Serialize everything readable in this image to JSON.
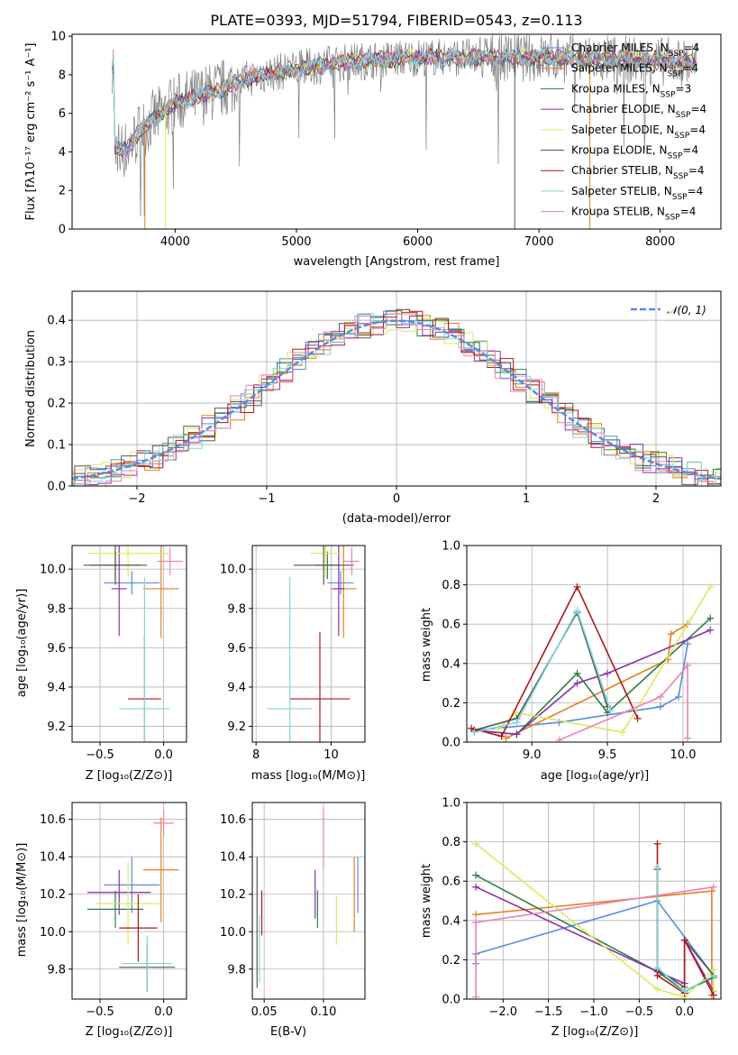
{
  "colors": [
    "#5a8be0",
    "#e0801f",
    "#2f7d45",
    "#8b2fa8",
    "#dde85b",
    "#555555",
    "#b01818",
    "#80d6d6",
    "#e883b8"
  ],
  "chart_data": [
    {
      "id": "spectrum",
      "type": "line",
      "title": "PLATE=0393, MJD=51794, FIBERID=0543, z=0.113",
      "xlabel": "wavelength [Angstrom, rest frame]",
      "ylabel": "Flux [fλ10⁻¹⁷ erg cm⁻² s⁻¹ A⁻¹]",
      "xlim": [
        3150,
        8500
      ],
      "ylim": [
        0,
        10.1
      ],
      "xticks": [
        "4000",
        "5000",
        "6000",
        "7000",
        "8000"
      ],
      "yticks": [
        "0",
        "2",
        "4",
        "6",
        "8",
        "10"
      ],
      "legend_position": "right",
      "series": [
        {
          "name": "Chabrier MILES, N_SSP=4",
          "leg_main": "Chabrier MILES, N",
          "leg_sub": "SSP",
          "leg_end": "=4"
        },
        {
          "name": "Salpeter MILES, N_SSP=4",
          "leg_main": "Salpeter MILES, N",
          "leg_sub": "SSP",
          "leg_end": "=4"
        },
        {
          "name": "Kroupa MILES, N_SSP=3",
          "leg_main": "Kroupa MILES, N",
          "leg_sub": "SSP",
          "leg_end": "=3"
        },
        {
          "name": "Chabrier ELODIE, N_SSP=4",
          "leg_main": "Chabrier ELODIE, N",
          "leg_sub": "SSP",
          "leg_end": "=4"
        },
        {
          "name": "Salpeter ELODIE, N_SSP=4",
          "leg_main": "Salpeter ELODIE, N",
          "leg_sub": "SSP",
          "leg_end": "=4"
        },
        {
          "name": "Kroupa ELODIE, N_SSP=4",
          "leg_main": "Kroupa ELODIE, N",
          "leg_sub": "SSP",
          "leg_end": "=4"
        },
        {
          "name": "Chabrier STELIB, N_SSP=4",
          "leg_main": "Chabrier STELIB, N",
          "leg_sub": "SSP",
          "leg_end": "=4"
        },
        {
          "name": "Salpeter STELIB, N_SSP=4",
          "leg_main": "Salpeter STELIB, N",
          "leg_sub": "SSP",
          "leg_end": "=4"
        },
        {
          "name": "Kroupa STELIB, N_SSP=4",
          "leg_main": "Kroupa STELIB, N",
          "leg_sub": "SSP",
          "leg_end": "=4"
        }
      ],
      "continuum": [
        [
          3500,
          4.2
        ],
        [
          3600,
          4.1
        ],
        [
          3700,
          5.0
        ],
        [
          3800,
          5.6
        ],
        [
          3900,
          6.0
        ],
        [
          4000,
          6.5
        ],
        [
          4200,
          6.9
        ],
        [
          4400,
          7.3
        ],
        [
          4600,
          7.8
        ],
        [
          4800,
          8.1
        ],
        [
          5000,
          8.3
        ],
        [
          5200,
          8.5
        ],
        [
          5500,
          8.7
        ],
        [
          6000,
          8.9
        ],
        [
          6500,
          8.9
        ],
        [
          7000,
          8.9
        ],
        [
          7500,
          8.8
        ],
        [
          8000,
          8.7
        ],
        [
          8300,
          8.6
        ]
      ]
    },
    {
      "id": "residuals",
      "type": "line",
      "xlabel": "(data-model)/error",
      "ylabel": "Normed distribution",
      "xlim": [
        -2.5,
        2.5
      ],
      "ylim": [
        0,
        0.47
      ],
      "xticks": [
        "−2",
        "−1",
        "0",
        "1",
        "2"
      ],
      "yticks": [
        "0.0",
        "0.1",
        "0.2",
        "0.3",
        "0.4"
      ],
      "legend": "𝒩(0, 1)",
      "legend_position": "top-right",
      "curve": "normal(0,1)"
    },
    {
      "id": "age-Z",
      "type": "scatter",
      "xlabel": "Z [log₁₀(Z/Z⊙)]",
      "ylabel": "age  [log₁₀(age/yr)]",
      "xlim": [
        -0.72,
        0.18
      ],
      "ylim": [
        9.12,
        10.12
      ],
      "xticks": [
        "−0.5",
        "0.0"
      ],
      "yticks": [
        "9.2",
        "9.4",
        "9.6",
        "9.8",
        "10.0"
      ],
      "points": [
        {
          "x": -0.25,
          "y": 9.93,
          "xerr": 0.22,
          "yerr": 0.06,
          "c": 0
        },
        {
          "x": -0.02,
          "y": 9.9,
          "xerr": 0.14,
          "yerr": 0.25,
          "c": 1
        },
        {
          "x": -0.38,
          "y": 10.02,
          "xerr": 0.2,
          "yerr": 0.07,
          "c": 2
        },
        {
          "x": -0.35,
          "y": 9.9,
          "xerr": 0.06,
          "yerr": 0.24,
          "c": 3
        },
        {
          "x": -0.28,
          "y": 10.08,
          "xerr": 0.32,
          "yerr": 0.12,
          "c": 4
        },
        {
          "x": -0.38,
          "y": 10.02,
          "xerr": 0.25,
          "yerr": 0.1,
          "c": 5
        },
        {
          "x": -0.15,
          "y": 9.34,
          "xerr": 0.13,
          "yerr": 0.32,
          "c": 6
        },
        {
          "x": -0.15,
          "y": 9.29,
          "xerr": 0.2,
          "yerr": 0.67,
          "c": 7
        },
        {
          "x": 0.05,
          "y": 10.04,
          "xerr": 0.1,
          "yerr": 0.07,
          "c": 8
        }
      ]
    },
    {
      "id": "age-mass",
      "type": "scatter",
      "xlabel": "mass [log₁₀(M/M⊙)]",
      "ylabel": "",
      "xlim": [
        7.9,
        10.9
      ],
      "ylim": [
        9.12,
        10.12
      ],
      "xticks": [
        "8",
        "10"
      ],
      "yticks": [
        "9.2",
        "9.4",
        "9.6",
        "9.8",
        "10.0"
      ],
      "points": [
        {
          "x": 10.25,
          "y": 9.93,
          "xerr": 0.35,
          "yerr": 0.06,
          "c": 0
        },
        {
          "x": 10.33,
          "y": 9.9,
          "xerr": 0.35,
          "yerr": 0.25,
          "c": 1
        },
        {
          "x": 9.9,
          "y": 10.02,
          "xerr": 0.35,
          "yerr": 0.07,
          "c": 2
        },
        {
          "x": 10.2,
          "y": 9.9,
          "xerr": 0.15,
          "yerr": 0.24,
          "c": 3
        },
        {
          "x": 9.85,
          "y": 10.08,
          "xerr": 0.4,
          "yerr": 0.12,
          "c": 4
        },
        {
          "x": 9.8,
          "y": 10.02,
          "xerr": 0.8,
          "yerr": 0.1,
          "c": 5
        },
        {
          "x": 9.7,
          "y": 9.34,
          "xerr": 0.8,
          "yerr": 0.34,
          "c": 6
        },
        {
          "x": 8.9,
          "y": 9.29,
          "xerr": 0.6,
          "yerr": 0.67,
          "c": 7
        },
        {
          "x": 10.55,
          "y": 10.04,
          "xerr": 0.2,
          "yerr": 0.07,
          "c": 8
        }
      ]
    },
    {
      "id": "weight-age",
      "type": "line",
      "xlabel": "age  [log₁₀(age/yr)]",
      "ylabel": "mass weight",
      "xlim": [
        8.57,
        10.25
      ],
      "ylim": [
        0,
        1.0
      ],
      "xticks": [
        "9.0",
        "9.5",
        "10.0"
      ],
      "yticks": [
        "0.0",
        "0.2",
        "0.4",
        "0.6",
        "0.8",
        "1.0"
      ],
      "series": [
        {
          "c": 0,
          "x": [
            8.62,
            9.18,
            9.85,
            9.97,
            10.03
          ],
          "y": [
            0.06,
            0.1,
            0.18,
            0.23,
            0.5
          ]
        },
        {
          "c": 1,
          "x": [
            8.83,
            9.9,
            9.92,
            10.03
          ],
          "y": [
            0.02,
            0.42,
            0.55,
            0.6
          ]
        },
        {
          "c": 2,
          "x": [
            8.62,
            8.9,
            9.3,
            9.5,
            10.18
          ],
          "y": [
            0.06,
            0.04,
            0.35,
            0.15,
            0.63
          ]
        },
        {
          "c": 3,
          "x": [
            8.62,
            8.9,
            9.3,
            9.5,
            10.18
          ],
          "y": [
            0.06,
            0.04,
            0.3,
            0.35,
            0.57
          ]
        },
        {
          "c": 4,
          "x": [
            8.78,
            8.9,
            9.6,
            10.18
          ],
          "y": [
            0.07,
            0.15,
            0.05,
            0.79
          ]
        },
        {
          "c": 5,
          "x": [
            8.62,
            8.9,
            9.3,
            9.5
          ],
          "y": [
            0.06,
            0.12,
            0.66,
            0.18
          ]
        },
        {
          "c": 6,
          "x": [
            8.6,
            8.8,
            9.3,
            9.7
          ],
          "y": [
            0.07,
            0.03,
            0.79,
            0.12
          ]
        },
        {
          "c": 7,
          "x": [
            8.62,
            8.9,
            9.3,
            9.52
          ],
          "y": [
            0.05,
            0.1,
            0.67,
            0.16
          ]
        },
        {
          "c": 8,
          "x": [
            9.18,
            9.85,
            10.03,
            10.03
          ],
          "y": [
            0.01,
            0.23,
            0.39,
            0.02
          ]
        }
      ]
    },
    {
      "id": "mass-Z",
      "type": "scatter",
      "xlabel": "Z [log₁₀(Z/Z⊙)]",
      "ylabel": "mass [log₁₀(M/M⊙)]",
      "xlim": [
        -0.72,
        0.18
      ],
      "ylim": [
        9.64,
        10.69
      ],
      "xticks": [
        "−0.5",
        "0.0"
      ],
      "yticks": [
        "9.8",
        "10.0",
        "10.2",
        "10.4",
        "10.6"
      ],
      "points": [
        {
          "x": -0.25,
          "y": 10.25,
          "xerr": 0.22,
          "yerr": 0.15,
          "c": 0
        },
        {
          "x": -0.02,
          "y": 10.33,
          "xerr": 0.14,
          "yerr": 0.28,
          "c": 1
        },
        {
          "x": -0.38,
          "y": 10.12,
          "xerr": 0.22,
          "yerr": 0.1,
          "c": 2
        },
        {
          "x": -0.35,
          "y": 10.21,
          "xerr": 0.25,
          "yerr": 0.12,
          "c": 3
        },
        {
          "x": -0.28,
          "y": 10.15,
          "xerr": 0.25,
          "yerr": 0.22,
          "c": 4
        },
        {
          "x": -0.13,
          "y": 9.81,
          "xerr": 0.22,
          "yerr": 0.13,
          "c": 5
        },
        {
          "x": -0.2,
          "y": 10.02,
          "xerr": 0.15,
          "yerr": 0.18,
          "c": 6
        },
        {
          "x": -0.13,
          "y": 9.83,
          "xerr": 0.2,
          "yerr": 0.15,
          "c": 7
        },
        {
          "x": 0.0,
          "y": 10.58,
          "xerr": 0.08,
          "yerr": 0.07,
          "c": 8
        }
      ]
    },
    {
      "id": "mass-EBV",
      "type": "scatter",
      "xlabel": "E(B-V)",
      "ylabel": "",
      "xlim": [
        0.04,
        0.135
      ],
      "ylim": [
        9.64,
        10.69
      ],
      "xticks": [
        "0.05",
        "0.10"
      ],
      "yticks": [
        "9.8",
        "10.0",
        "10.2",
        "10.4",
        "10.6"
      ],
      "points": [
        {
          "x": 0.129,
          "y": 10.25,
          "yerr": 0.15,
          "c": 0
        },
        {
          "x": 0.126,
          "y": 10.2,
          "yerr": 0.2,
          "c": 1
        },
        {
          "x": 0.095,
          "y": 10.12,
          "yerr": 0.1,
          "c": 2
        },
        {
          "x": 0.093,
          "y": 10.2,
          "yerr": 0.13,
          "c": 3
        },
        {
          "x": 0.111,
          "y": 10.06,
          "yerr": 0.13,
          "c": 4
        },
        {
          "x": 0.044,
          "y": 10.05,
          "yerr": 0.35,
          "c": 5
        },
        {
          "x": 0.048,
          "y": 10.1,
          "yerr": 0.12,
          "c": 6
        },
        {
          "x": 0.046,
          "y": 9.91,
          "yerr": 0.18,
          "c": 7
        },
        {
          "x": 0.1,
          "y": 10.5,
          "yerr": 0.16,
          "c": 8
        }
      ]
    },
    {
      "id": "weight-Z",
      "type": "line",
      "xlabel": "Z [log₁₀(Z/Z⊙)]",
      "ylabel": "mass weight",
      "xlim": [
        -2.4,
        0.4
      ],
      "ylim": [
        0,
        1.0
      ],
      "xticks": [
        "−2.0",
        "−1.5",
        "−1.0",
        "−0.5",
        "0.0"
      ],
      "yticks": [
        "0.0",
        "0.2",
        "0.4",
        "0.6",
        "0.8",
        "1.0"
      ],
      "series": [
        {
          "c": 0,
          "x": [
            -2.3,
            -2.3,
            -0.3,
            0.32
          ],
          "y": [
            0.18,
            0.23,
            0.5,
            0.12
          ]
        },
        {
          "c": 1,
          "x": [
            -2.3,
            0.3,
            0.3,
            0.3
          ],
          "y": [
            0.43,
            0.55,
            0.55,
            0.02
          ]
        },
        {
          "c": 2,
          "x": [
            -2.3,
            -0.3,
            0.0,
            0.32
          ],
          "y": [
            0.63,
            0.14,
            0.04,
            0.11
          ]
        },
        {
          "c": 3,
          "x": [
            -2.3,
            -0.3,
            0.0,
            0.0,
            0.32
          ],
          "y": [
            0.57,
            0.14,
            0.08,
            0.3,
            0.04
          ]
        },
        {
          "c": 4,
          "x": [
            -2.3,
            -0.3,
            0.0,
            0.32,
            0.32
          ],
          "y": [
            0.79,
            0.05,
            0.01,
            0.15,
            0.04
          ]
        },
        {
          "c": 5,
          "x": [
            -0.3,
            -0.3,
            0.0,
            0.0,
            0.32
          ],
          "y": [
            0.66,
            0.15,
            0.06,
            0.3,
            0.12
          ]
        },
        {
          "c": 6,
          "x": [
            -0.3,
            -0.3,
            0.0,
            0.0,
            0.32
          ],
          "y": [
            0.79,
            0.12,
            0.03,
            0.3,
            0.02
          ]
        },
        {
          "c": 7,
          "x": [
            -0.3,
            -0.3,
            0.0,
            0.32
          ],
          "y": [
            0.67,
            0.16,
            0.04,
            0.12
          ]
        },
        {
          "c": 8,
          "x": [
            -2.3,
            -2.3,
            0.32
          ],
          "y": [
            0.01,
            0.39,
            0.57
          ]
        }
      ]
    }
  ]
}
